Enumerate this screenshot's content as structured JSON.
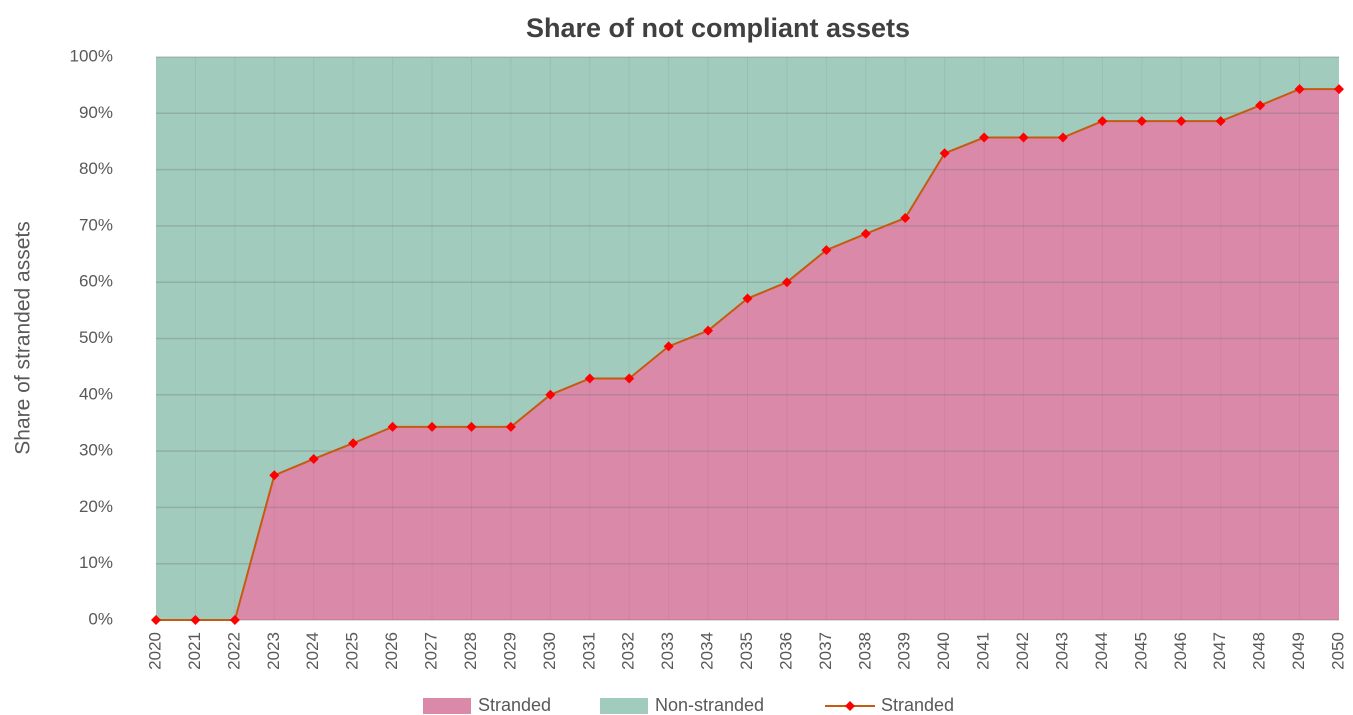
{
  "chart_data": {
    "type": "area",
    "title": "Share of not compliant assets",
    "y_label": "Share of stranded assets",
    "categories": [
      "2020",
      "2021",
      "2022",
      "2023",
      "2024",
      "2025",
      "2026",
      "2027",
      "2028",
      "2029",
      "2030",
      "2031",
      "2032",
      "2033",
      "2034",
      "2035",
      "2036",
      "2037",
      "2038",
      "2039",
      "2040",
      "2041",
      "2042",
      "2043",
      "2044",
      "2045",
      "2046",
      "2047",
      "2048",
      "2049",
      "2050"
    ],
    "series": [
      {
        "name": "Stranded",
        "kind": "area",
        "color": "#db89a8",
        "values": [
          0,
          0,
          0,
          25.7,
          28.6,
          31.4,
          34.3,
          34.3,
          34.3,
          34.3,
          40,
          42.9,
          42.9,
          48.6,
          51.4,
          57.1,
          60,
          65.7,
          68.6,
          71.4,
          82.9,
          85.7,
          85.7,
          85.7,
          88.6,
          88.6,
          88.6,
          88.6,
          91.4,
          94.3,
          94.3
        ]
      },
      {
        "name": "Non-stranded",
        "kind": "area",
        "color": "#a0cbbd",
        "values": [
          100,
          100,
          100,
          74.3,
          71.4,
          68.6,
          65.7,
          65.7,
          65.7,
          65.7,
          60,
          57.1,
          57.1,
          51.4,
          48.6,
          42.9,
          40,
          34.3,
          31.4,
          28.6,
          17.1,
          14.3,
          14.3,
          14.3,
          11.4,
          11.4,
          11.4,
          11.4,
          8.6,
          5.7,
          5.7
        ]
      },
      {
        "name": "Stranded",
        "kind": "line",
        "color": "#c55a11",
        "marker_color": "#ff0000",
        "values": [
          0,
          0,
          0,
          25.7,
          28.6,
          31.4,
          34.3,
          34.3,
          34.3,
          34.3,
          40,
          42.9,
          42.9,
          48.6,
          51.4,
          57.1,
          60,
          65.7,
          68.6,
          71.4,
          82.9,
          85.7,
          85.7,
          85.7,
          88.6,
          88.6,
          88.6,
          88.6,
          91.4,
          94.3,
          94.3
        ]
      }
    ],
    "stacked": true,
    "ylim": [
      0,
      100
    ],
    "yticks": [
      {
        "value": 0,
        "label": "0%"
      },
      {
        "value": 10,
        "label": "10%"
      },
      {
        "value": 20,
        "label": "20%"
      },
      {
        "value": 30,
        "label": "30%"
      },
      {
        "value": 40,
        "label": "40%"
      },
      {
        "value": 50,
        "label": "50%"
      },
      {
        "value": 60,
        "label": "60%"
      },
      {
        "value": 70,
        "label": "70%"
      },
      {
        "value": 80,
        "label": "80%"
      },
      {
        "value": 90,
        "label": "90%"
      },
      {
        "value": 100,
        "label": "100%"
      }
    ],
    "grid": true,
    "legend": "bottom"
  }
}
